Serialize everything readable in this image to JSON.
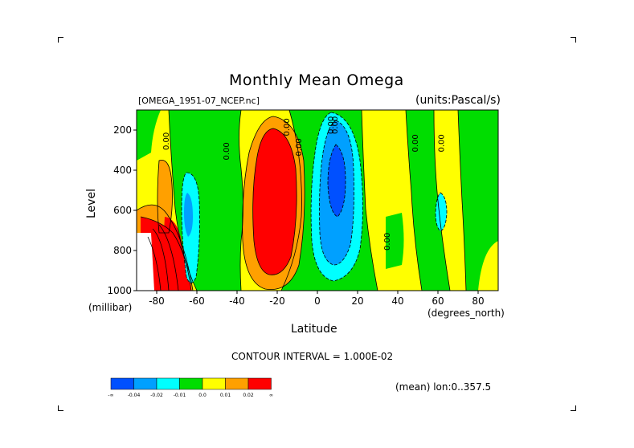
{
  "chart_data": {
    "type": "contour",
    "title": "Monthly Mean Omega",
    "file_label": "[OMEGA_1951-07_NCEP.nc]",
    "units_label": "(units:Pascal/s)",
    "xlabel": "Latitude",
    "x_unit_label": "(degrees_north)",
    "ylabel": "Level",
    "y_unit_label": "(millibar)",
    "xlim": [
      -90,
      90
    ],
    "ylim": [
      1000,
      100
    ],
    "x_ticks": [
      -80,
      -60,
      -40,
      -20,
      0,
      20,
      40,
      60,
      80
    ],
    "y_ticks": [
      200,
      400,
      600,
      800,
      1000
    ],
    "contour_interval_label": "CONTOUR INTERVAL = 1.000E-02",
    "mean_label": "(mean) lon:0..357.5",
    "contour_labels": [
      "0.00",
      "0.00",
      "0.00",
      "0.00",
      "0.00",
      "0.00",
      "0.00",
      "0.00",
      "0.00"
    ],
    "colorbar": {
      "colors": [
        "#0050ff",
        "#00a0ff",
        "#00ffff",
        "#00dd00",
        "#ffff00",
        "#ffa000",
        "#ff0000"
      ],
      "labels": [
        "-∞",
        "-0.04",
        "-0.02",
        "-0.01",
        "0.0",
        "0.01",
        "0.02",
        "∞"
      ]
    },
    "grid": false,
    "legend": "bottom-left"
  }
}
